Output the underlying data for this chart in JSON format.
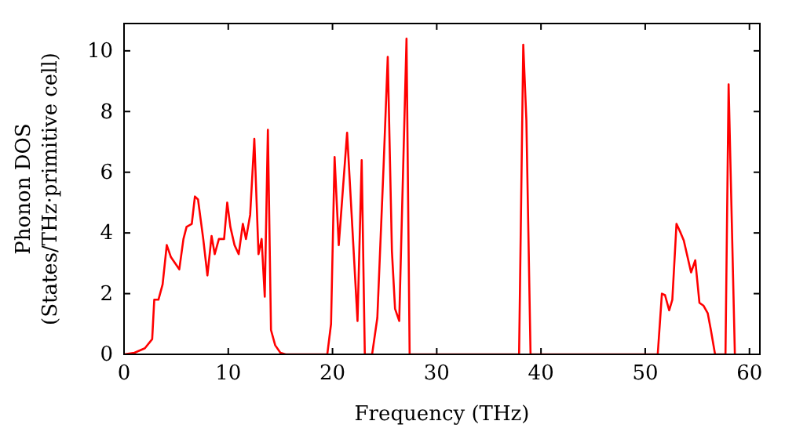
{
  "chart_data": {
    "type": "line",
    "xlabel": "Frequency (THz)",
    "ylabel": "Phonon DOS\n(States/THz·primitive cell)",
    "xlim": [
      0,
      61
    ],
    "ylim": [
      0,
      10.9
    ],
    "xticks": [
      0,
      10,
      20,
      30,
      40,
      50,
      60
    ],
    "yticks": [
      0,
      2,
      4,
      6,
      8,
      10
    ],
    "grid": false,
    "marker": "none",
    "line_style": "solid",
    "series": [
      {
        "color": "#ff0000",
        "x": [
          0,
          1,
          2,
          2.7,
          2.9,
          3.3,
          3.7,
          4.1,
          4.5,
          5.3,
          5.7,
          6,
          6.5,
          6.8,
          7.1,
          7.6,
          8,
          8.4,
          8.7,
          9.1,
          9.6,
          9.9,
          10.2,
          10.6,
          11,
          11.4,
          11.7,
          12.1,
          12.5,
          12.9,
          13.2,
          13.5,
          13.8,
          14.1,
          14.5,
          15,
          15.5,
          19.5,
          19.86,
          20.2,
          20.6,
          21.4,
          22.4,
          22.8,
          23.1,
          23.8,
          24.3,
          24.9,
          25.3,
          25.7,
          26,
          26.4,
          26.7,
          27.1,
          27.4,
          37.9,
          38.3,
          38.6,
          39,
          51.2,
          51.6,
          51.9,
          52.3,
          52.6,
          53,
          53.4,
          53.7,
          54.4,
          54.8,
          55.2,
          55.6,
          56,
          56.3,
          56.7,
          57.7,
          58,
          58.6
        ],
        "values": [
          0,
          0.05,
          0.2,
          0.5,
          1.8,
          1.8,
          2.3,
          3.6,
          3.2,
          2.8,
          3.8,
          4.2,
          4.3,
          5.2,
          5.1,
          3.8,
          2.6,
          3.9,
          3.3,
          3.8,
          3.8,
          5,
          4.2,
          3.6,
          3.3,
          4.3,
          3.8,
          4.6,
          7.1,
          3.3,
          3.8,
          1.9,
          7.4,
          0.8,
          0.3,
          0.05,
          0,
          0,
          1,
          6.5,
          3.6,
          7.3,
          1.1,
          6.4,
          0,
          0,
          1.2,
          6.2,
          9.8,
          3.4,
          1.5,
          1.1,
          5.1,
          10.4,
          0,
          0,
          10.2,
          7.7,
          0,
          0,
          2,
          1.95,
          1.45,
          1.8,
          4.3,
          4,
          3.75,
          2.7,
          3.1,
          1.7,
          1.6,
          1.35,
          0.8,
          0,
          0,
          8.9,
          0
        ]
      }
    ]
  }
}
